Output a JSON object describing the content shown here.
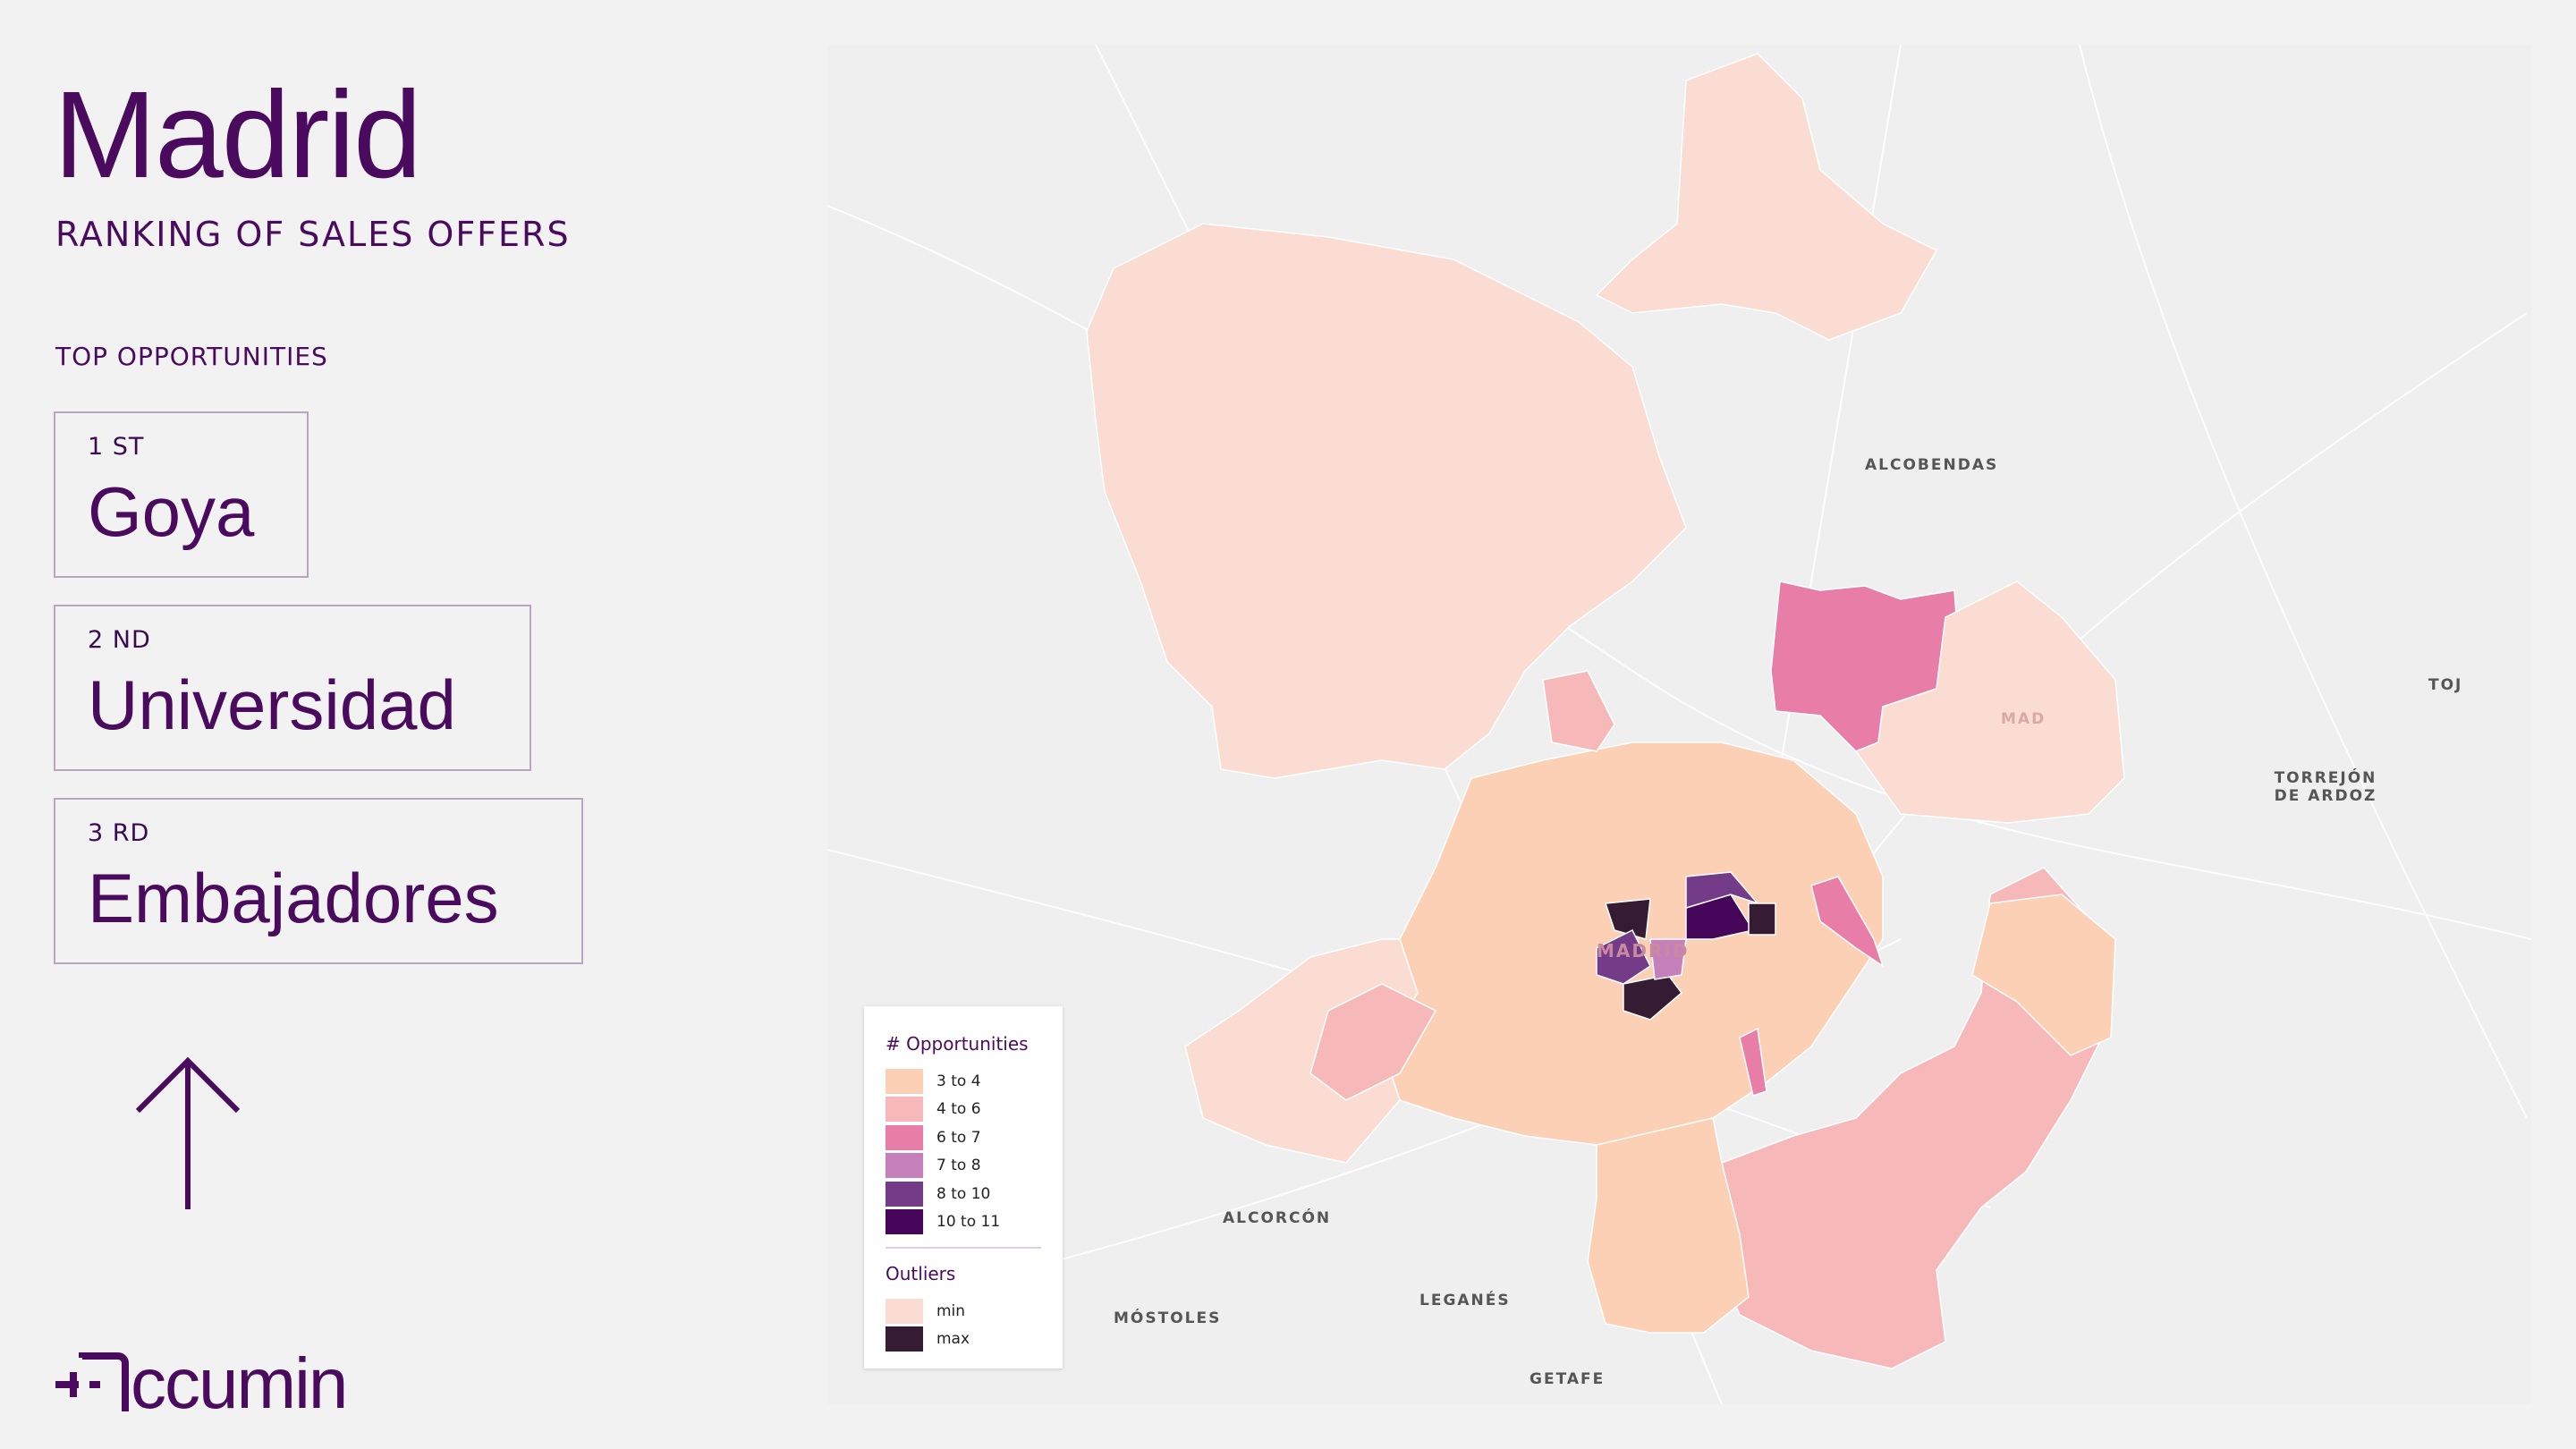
{
  "header": {
    "title": "Madrid",
    "subtitle": "RANKING OF SALES OFFERS"
  },
  "section_title": "TOP OPPORTUNITIES",
  "ranking": [
    {
      "position": "1 ST",
      "name": "Goya"
    },
    {
      "position": "2 ND",
      "name": "Universidad"
    },
    {
      "position": "3 RD",
      "name": "Embajadores"
    }
  ],
  "arrow_icon": "arrow-up-icon",
  "logo": "Accumin",
  "map": {
    "place_labels": [
      "ALCOBENDAS",
      "MAD",
      "TOJ",
      "TORREJÓN DE ARDOZ",
      "ALCORCÓN",
      "MÓSTOLES",
      "LEGANÉS",
      "GETAFE",
      "MADRID"
    ],
    "legend": {
      "title": "# Opportunities",
      "items": [
        {
          "label": "3 to 4",
          "color": "#fbd0b4"
        },
        {
          "label": "4 to 6",
          "color": "#f6b8b8"
        },
        {
          "label": "6 to 7",
          "color": "#e87ea8"
        },
        {
          "label": "7 to 8",
          "color": "#c580bc"
        },
        {
          "label": "8 to 10",
          "color": "#733b88"
        },
        {
          "label": "10 to 11",
          "color": "#450559"
        }
      ],
      "outliers_title": "Outliers",
      "outliers": [
        {
          "label": "min",
          "color": "#fadcd2"
        },
        {
          "label": "max",
          "color": "#351c33"
        }
      ]
    }
  }
}
